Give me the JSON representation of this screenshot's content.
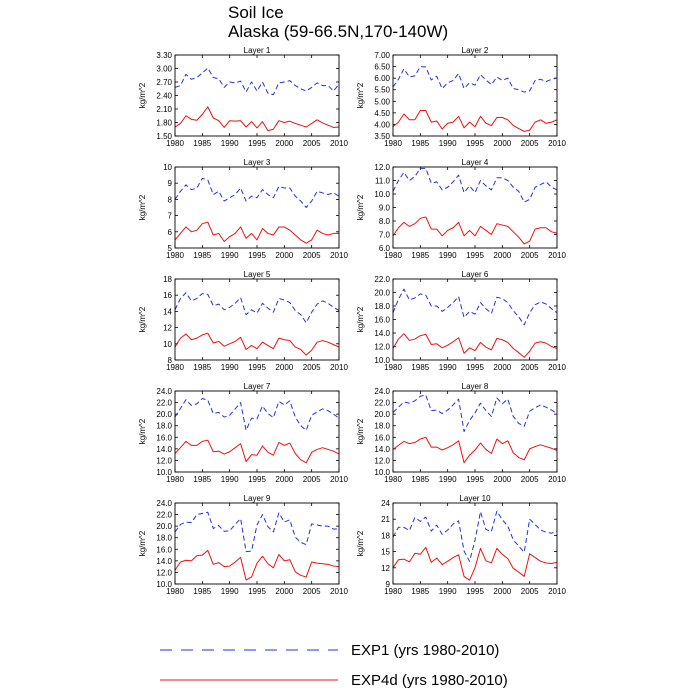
{
  "figure": {
    "title_line1": "Soil Ice",
    "title_line2": "Alaska (59-66.5N,170-140W)"
  },
  "legend": [
    {
      "name": "EXP1 (yrs 1980-2010)",
      "color": "#2233dd",
      "style": "dashed"
    },
    {
      "name": "EXP4d (yrs 1980-2010)",
      "color": "#ee1111",
      "style": "solid"
    }
  ],
  "chart_data": [
    {
      "type": "line",
      "title": "Layer 1",
      "ylabel": "kg/m^2",
      "xlim": [
        1980,
        2010
      ],
      "x_ticks": [
        1980,
        1985,
        1990,
        1995,
        2000,
        2005,
        2010
      ],
      "ylim": [
        1.5,
        3.3
      ],
      "y_ticks": [
        "1.50",
        "1.80",
        "2.10",
        "2.40",
        "2.70",
        "3.00",
        "3.30"
      ],
      "series": [
        {
          "name": "EXP1 (yrs 1980-2010)",
          "values": [
            2.58,
            2.62,
            2.87,
            2.76,
            2.8,
            2.9,
            3.01,
            2.8,
            2.77,
            2.58,
            2.7,
            2.68,
            2.72,
            2.48,
            2.7,
            2.5,
            2.7,
            2.45,
            2.42,
            2.68,
            2.7,
            2.73,
            2.62,
            2.55,
            2.5,
            2.58,
            2.68,
            2.62,
            2.62,
            2.5,
            2.65
          ]
        },
        {
          "name": "EXP4d (yrs 1980-2010)",
          "values": [
            1.7,
            1.78,
            1.95,
            1.87,
            1.85,
            1.98,
            2.15,
            1.9,
            1.84,
            1.69,
            1.84,
            1.83,
            1.84,
            1.7,
            1.82,
            1.68,
            1.82,
            1.62,
            1.65,
            1.84,
            1.8,
            1.83,
            1.78,
            1.74,
            1.7,
            1.78,
            1.86,
            1.79,
            1.74,
            1.69,
            1.7
          ]
        }
      ]
    },
    {
      "type": "line",
      "title": "Layer 2",
      "ylabel": "kg/m^2",
      "xlim": [
        1980,
        2010
      ],
      "x_ticks": [
        1980,
        1985,
        1990,
        1995,
        2000,
        2005,
        2010
      ],
      "ylim": [
        3.5,
        7.0
      ],
      "y_ticks": [
        "3.50",
        "4.00",
        "4.50",
        "5.00",
        "5.50",
        "6.00",
        "6.50",
        "7.00"
      ],
      "series": [
        {
          "name": "EXP1 (yrs 1980-2010)",
          "values": [
            5.62,
            5.95,
            6.4,
            6.05,
            6.1,
            6.5,
            6.48,
            5.92,
            6.08,
            5.55,
            5.8,
            5.9,
            6.2,
            5.55,
            5.8,
            5.7,
            6.15,
            5.92,
            5.72,
            6.05,
            5.9,
            6.0,
            5.55,
            5.5,
            5.4,
            5.45,
            5.9,
            5.95,
            5.85,
            5.95,
            6.0
          ]
        },
        {
          "name": "EXP4d (yrs 1980-2010)",
          "values": [
            3.9,
            4.1,
            4.45,
            4.2,
            4.2,
            4.6,
            4.6,
            4.1,
            4.15,
            3.8,
            4.05,
            4.1,
            4.35,
            3.85,
            4.1,
            3.9,
            4.35,
            4.05,
            3.95,
            4.3,
            4.3,
            4.2,
            3.95,
            3.82,
            3.7,
            3.75,
            4.1,
            4.2,
            4.05,
            4.1,
            4.2
          ]
        }
      ]
    },
    {
      "type": "line",
      "title": "Layer 3",
      "ylabel": "kg/m^2",
      "xlim": [
        1980,
        2010
      ],
      "x_ticks": [
        1980,
        1985,
        1990,
        1995,
        2000,
        2005,
        2010
      ],
      "ylim": [
        5,
        10
      ],
      "y_ticks": [
        "5",
        "6",
        "7",
        "8",
        "9",
        "10"
      ],
      "series": [
        {
          "name": "EXP1 (yrs 1980-2010)",
          "values": [
            8.0,
            8.5,
            8.9,
            8.6,
            8.7,
            9.3,
            9.2,
            8.3,
            8.5,
            7.9,
            8.1,
            8.3,
            8.7,
            7.9,
            8.2,
            8.1,
            8.6,
            8.3,
            8.1,
            8.8,
            8.7,
            8.7,
            8.2,
            7.9,
            7.5,
            7.9,
            8.5,
            8.4,
            8.3,
            8.4,
            8.2
          ]
        },
        {
          "name": "EXP4d (yrs 1980-2010)",
          "values": [
            5.5,
            5.9,
            6.3,
            6.0,
            6.1,
            6.5,
            6.6,
            5.8,
            5.9,
            5.4,
            5.7,
            5.9,
            6.3,
            5.6,
            5.9,
            5.5,
            6.2,
            5.9,
            5.8,
            6.3,
            6.3,
            6.1,
            5.8,
            5.5,
            5.3,
            5.5,
            6.1,
            5.9,
            5.8,
            5.9,
            5.9
          ]
        }
      ]
    },
    {
      "type": "line",
      "title": "Layer 4",
      "ylabel": "kg/m^2",
      "xlim": [
        1980,
        2010
      ],
      "x_ticks": [
        1980,
        1985,
        1990,
        1995,
        2000,
        2005,
        2010
      ],
      "ylim": [
        6.0,
        12.0
      ],
      "y_ticks": [
        "6.0",
        "7.0",
        "8.0",
        "9.0",
        "10.0",
        "11.0",
        "12.0"
      ],
      "series": [
        {
          "name": "EXP1 (yrs 1980-2010)",
          "values": [
            10.2,
            11.0,
            11.6,
            11.0,
            11.3,
            11.9,
            11.9,
            10.8,
            10.9,
            10.3,
            10.5,
            10.9,
            11.4,
            10.1,
            10.6,
            10.1,
            11.0,
            10.6,
            10.3,
            11.2,
            11.2,
            11.0,
            10.5,
            10.2,
            9.4,
            9.6,
            10.5,
            10.7,
            10.9,
            10.5,
            10.3
          ]
        },
        {
          "name": "EXP4d (yrs 1980-2010)",
          "values": [
            6.9,
            7.5,
            7.9,
            7.6,
            7.8,
            8.2,
            8.3,
            7.4,
            7.4,
            6.9,
            7.3,
            7.5,
            7.9,
            6.9,
            7.3,
            6.9,
            7.6,
            7.3,
            7.0,
            7.8,
            7.7,
            7.6,
            7.2,
            6.8,
            6.3,
            6.5,
            7.4,
            7.5,
            7.5,
            7.2,
            7.1
          ]
        }
      ]
    },
    {
      "type": "line",
      "title": "Layer 5",
      "ylabel": "kg/m^2",
      "xlim": [
        1980,
        2010
      ],
      "x_ticks": [
        1980,
        1985,
        1990,
        1995,
        2000,
        2005,
        2010
      ],
      "ylim": [
        8,
        18
      ],
      "y_ticks": [
        "8",
        "10",
        "12",
        "14",
        "16",
        "18"
      ],
      "series": [
        {
          "name": "EXP1 (yrs 1980-2010)",
          "values": [
            14.2,
            15.6,
            16.3,
            15.3,
            15.6,
            16.2,
            16.1,
            14.7,
            14.9,
            14.2,
            14.5,
            15.0,
            15.7,
            13.6,
            14.2,
            13.8,
            15.0,
            14.4,
            13.9,
            15.6,
            15.4,
            15.1,
            14.1,
            13.6,
            12.6,
            13.9,
            14.9,
            15.3,
            15.0,
            14.5,
            14.1
          ]
        },
        {
          "name": "EXP4d (yrs 1980-2010)",
          "values": [
            9.6,
            10.7,
            11.2,
            10.5,
            10.7,
            11.1,
            11.3,
            10.1,
            10.3,
            9.7,
            10.0,
            10.3,
            10.8,
            9.3,
            9.8,
            9.4,
            10.2,
            9.8,
            9.4,
            10.7,
            10.5,
            10.4,
            9.6,
            9.3,
            8.6,
            9.2,
            10.2,
            10.4,
            10.2,
            9.9,
            9.6
          ]
        }
      ]
    },
    {
      "type": "line",
      "title": "Layer 6",
      "ylabel": "kg/m^2",
      "xlim": [
        1980,
        2010
      ],
      "x_ticks": [
        1980,
        1985,
        1990,
        1995,
        2000,
        2005,
        2010
      ],
      "ylim": [
        10.0,
        22.0
      ],
      "y_ticks": [
        "10.0",
        "12.0",
        "14.0",
        "16.0",
        "18.0",
        "20.0",
        "22.0"
      ],
      "series": [
        {
          "name": "EXP1 (yrs 1980-2010)",
          "values": [
            17.0,
            19.0,
            20.5,
            18.9,
            19.2,
            19.8,
            19.6,
            18.0,
            18.0,
            17.2,
            17.8,
            18.5,
            19.4,
            16.3,
            17.2,
            16.8,
            18.5,
            17.6,
            16.9,
            19.3,
            19.1,
            18.5,
            17.3,
            16.4,
            15.2,
            17.0,
            18.2,
            18.6,
            18.3,
            17.6,
            17.0
          ]
        },
        {
          "name": "EXP4d (yrs 1980-2010)",
          "values": [
            11.7,
            13.1,
            13.9,
            12.9,
            13.1,
            13.6,
            13.8,
            12.3,
            12.4,
            11.8,
            12.2,
            12.7,
            13.3,
            11.0,
            11.8,
            11.4,
            12.6,
            11.9,
            11.5,
            13.2,
            13.0,
            12.6,
            11.7,
            11.1,
            10.4,
            11.3,
            12.5,
            12.7,
            12.5,
            12.0,
            11.7
          ]
        }
      ]
    },
    {
      "type": "line",
      "title": "Layer 7",
      "ylabel": "kg/m^2",
      "xlim": [
        1980,
        2010
      ],
      "x_ticks": [
        1980,
        1985,
        1990,
        1995,
        2000,
        2005,
        2010
      ],
      "ylim": [
        10.0,
        24.0
      ],
      "y_ticks": [
        "10.0",
        "12.0",
        "14.0",
        "16.0",
        "18.0",
        "20.0",
        "22.0",
        "24.0"
      ],
      "series": [
        {
          "name": "EXP1 (yrs 1980-2010)",
          "values": [
            19.5,
            21.0,
            22.5,
            21.5,
            21.8,
            22.7,
            22.4,
            20.1,
            20.3,
            19.5,
            19.8,
            20.9,
            22.0,
            17.2,
            19.3,
            19.2,
            21.4,
            20.1,
            19.4,
            22.2,
            21.6,
            22.3,
            19.5,
            18.0,
            17.2,
            19.8,
            20.4,
            20.9,
            20.6,
            20.0,
            19.3
          ]
        },
        {
          "name": "EXP4d (yrs 1980-2010)",
          "values": [
            13.2,
            14.2,
            15.3,
            14.6,
            14.6,
            15.3,
            15.5,
            13.5,
            13.6,
            13.1,
            13.5,
            14.2,
            14.9,
            11.8,
            13.0,
            12.9,
            14.5,
            13.4,
            12.9,
            15.1,
            14.6,
            15.0,
            13.2,
            12.1,
            11.6,
            13.4,
            13.9,
            14.2,
            13.9,
            13.6,
            13.1
          ]
        }
      ]
    },
    {
      "type": "line",
      "title": "Layer 8",
      "ylabel": "kg/m^2",
      "xlim": [
        1980,
        2010
      ],
      "x_ticks": [
        1980,
        1985,
        1990,
        1995,
        2000,
        2005,
        2010
      ],
      "ylim": [
        10.0,
        24.0
      ],
      "y_ticks": [
        "10.0",
        "12.0",
        "14.0",
        "16.0",
        "18.0",
        "20.0",
        "22.0",
        "24.0"
      ],
      "series": [
        {
          "name": "EXP1 (yrs 1980-2010)",
          "values": [
            20.3,
            21.2,
            22.1,
            21.9,
            22.3,
            23.1,
            23.3,
            20.6,
            20.7,
            20.1,
            20.7,
            21.6,
            22.6,
            17.0,
            18.9,
            20.2,
            21.9,
            20.6,
            19.6,
            22.8,
            21.8,
            22.6,
            19.6,
            18.4,
            17.9,
            20.5,
            21.1,
            21.6,
            21.2,
            20.7,
            20.1
          ]
        },
        {
          "name": "EXP4d (yrs 1980-2010)",
          "values": [
            13.9,
            14.6,
            15.3,
            14.9,
            15.1,
            15.7,
            16.0,
            14.3,
            14.3,
            13.8,
            14.2,
            14.7,
            15.4,
            11.6,
            12.9,
            13.8,
            15.0,
            13.9,
            13.2,
            15.7,
            14.9,
            15.4,
            13.3,
            12.5,
            12.1,
            14.0,
            14.4,
            14.7,
            14.4,
            14.1,
            13.7
          ]
        }
      ]
    },
    {
      "type": "line",
      "title": "Layer 9",
      "ylabel": "kg/m^2",
      "xlim": [
        1980,
        2010
      ],
      "x_ticks": [
        1980,
        1985,
        1990,
        1995,
        2000,
        2005,
        2010
      ],
      "ylim": [
        10.0,
        24.0
      ],
      "y_ticks": [
        "10.0",
        "12.0",
        "14.0",
        "16.0",
        "18.0",
        "20.0",
        "22.0",
        "24.0"
      ],
      "series": [
        {
          "name": "EXP1 (yrs 1980-2010)",
          "values": [
            19.0,
            20.3,
            20.7,
            20.6,
            22.0,
            22.2,
            22.4,
            19.6,
            20.1,
            19.1,
            19.2,
            20.3,
            21.3,
            15.6,
            15.7,
            20.2,
            22.0,
            19.9,
            19.0,
            22.3,
            20.7,
            21.1,
            18.1,
            17.2,
            16.8,
            20.4,
            20.2,
            20.0,
            20.0,
            19.5,
            19.5
          ]
        },
        {
          "name": "EXP4d (yrs 1980-2010)",
          "values": [
            12.4,
            13.8,
            14.1,
            14.0,
            14.9,
            15.0,
            15.8,
            13.4,
            13.7,
            13.0,
            13.1,
            13.8,
            14.6,
            10.7,
            11.2,
            13.6,
            14.8,
            13.5,
            12.8,
            15.1,
            14.0,
            14.2,
            12.1,
            11.5,
            11.2,
            13.8,
            13.6,
            13.5,
            13.4,
            13.1,
            13.0
          ]
        }
      ]
    },
    {
      "type": "line",
      "title": "Layer 10",
      "ylabel": "kg/m^2",
      "xlim": [
        1980,
        2010
      ],
      "x_ticks": [
        1980,
        1985,
        1990,
        1995,
        2000,
        2005,
        2010
      ],
      "ylim": [
        9,
        24
      ],
      "y_ticks": [
        "9",
        "12",
        "15",
        "18",
        "21",
        "24"
      ],
      "series": [
        {
          "name": "EXP1 (yrs 1980-2010)",
          "values": [
            17.7,
            19.5,
            19.5,
            18.9,
            21.3,
            20.6,
            21.4,
            18.8,
            19.9,
            18.2,
            19.0,
            20.1,
            20.7,
            15.1,
            13.2,
            17.1,
            22.4,
            19.1,
            18.7,
            22.5,
            20.9,
            19.7,
            17.2,
            16.0,
            14.9,
            21.0,
            20.0,
            19.0,
            18.6,
            18.4,
            18.8
          ]
        },
        {
          "name": "EXP4d (yrs 1980-2010)",
          "values": [
            12.0,
            13.5,
            13.6,
            13.1,
            14.7,
            14.5,
            15.8,
            13.0,
            13.8,
            12.6,
            13.2,
            13.9,
            14.4,
            10.4,
            9.7,
            12.0,
            15.6,
            13.3,
            12.9,
            15.6,
            14.5,
            13.7,
            11.9,
            11.2,
            10.4,
            14.6,
            13.9,
            13.2,
            12.9,
            12.8,
            13.0
          ]
        }
      ]
    }
  ]
}
